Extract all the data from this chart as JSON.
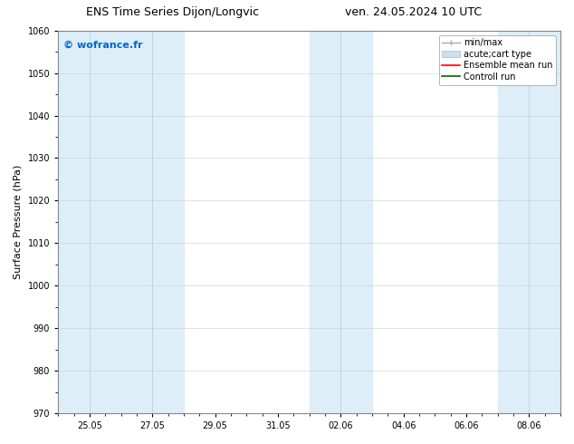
{
  "title_left": "ENS Time Series Dijon/Longvic",
  "title_right": "ven. 24.05.2024 10 UTC",
  "ylabel": "Surface Pressure (hPa)",
  "ylim": [
    970,
    1060
  ],
  "yticks": [
    970,
    980,
    990,
    1000,
    1010,
    1020,
    1030,
    1040,
    1050,
    1060
  ],
  "xtick_labels": [
    "25.05",
    "27.05",
    "29.05",
    "31.05",
    "02.06",
    "04.06",
    "06.06",
    "08.06"
  ],
  "xtick_positions": [
    1,
    3,
    5,
    7,
    9,
    11,
    13,
    15
  ],
  "xlim": [
    0,
    16
  ],
  "bg_color": "#ffffff",
  "plot_bg_color": "#ffffff",
  "shaded_bands": [
    {
      "x_start": 0,
      "x_end": 2,
      "color": "#ddeef8"
    },
    {
      "x_start": 2,
      "x_end": 4,
      "color": "#ddeef8"
    },
    {
      "x_start": 8,
      "x_end": 10,
      "color": "#ddeef8"
    },
    {
      "x_start": 14,
      "x_end": 16,
      "color": "#ddeef8"
    }
  ],
  "band_dividers": [
    1,
    3,
    9,
    15
  ],
  "watermark_text": "© wofrance.fr",
  "watermark_color": "#0066cc",
  "watermark_fontsize": 8,
  "title_fontsize": 9,
  "axis_label_fontsize": 8,
  "tick_fontsize": 7,
  "legend_fontsize": 7,
  "legend_minmax_color": "#aaaaaa",
  "legend_box_facecolor": "#cce0f0",
  "legend_box_edgecolor": "#aabbcc",
  "legend_ens_color": "#ff0000",
  "legend_ctrl_color": "#006600"
}
